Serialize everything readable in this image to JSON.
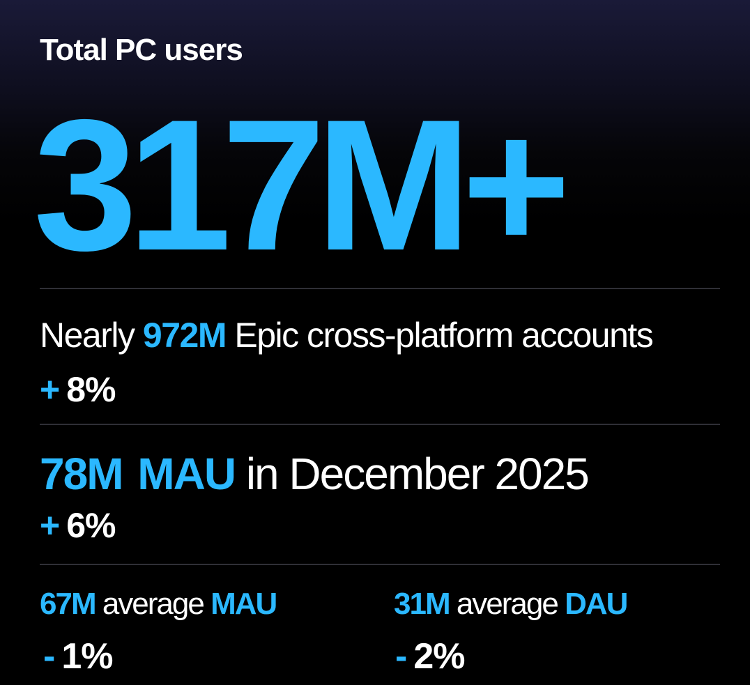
{
  "heading": "Total PC users",
  "hero_value": "317M+",
  "accounts": {
    "prefix": "Nearly",
    "value": "972M",
    "suffix": "Epic cross-platform accounts",
    "delta_sign": "+",
    "delta_value": "8%"
  },
  "mau_december": {
    "value": "78M",
    "metric": "MAU",
    "suffix": "in December 2025",
    "delta_sign": "+",
    "delta_value": "6%"
  },
  "average_mau": {
    "value": "67M",
    "label": "average",
    "metric": "MAU",
    "delta_sign": "-",
    "delta_value": "1%"
  },
  "average_dau": {
    "value": "31M",
    "label": "average",
    "metric": "DAU",
    "delta_sign": "-",
    "delta_value": "2%"
  },
  "colors": {
    "accent": "#2bb8ff",
    "text": "#ffffff",
    "background": "#000000",
    "divider": "#2f2f36"
  }
}
